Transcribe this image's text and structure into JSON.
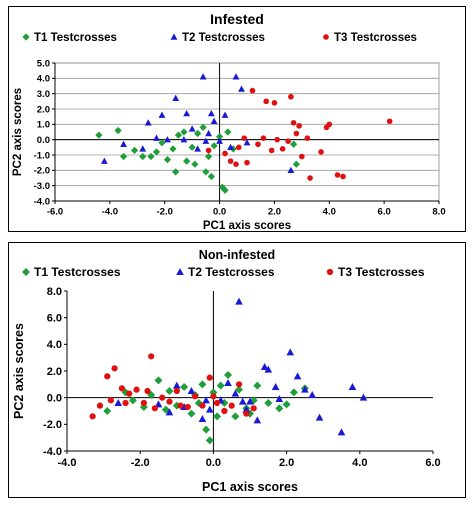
{
  "chart_data": [
    {
      "type": "scatter",
      "title": "Infested",
      "xlabel": "PC1 axis scores",
      "ylabel": "PC2 axis scores",
      "xlim": [
        -6.0,
        8.0
      ],
      "ylim": [
        -4.0,
        5.0
      ],
      "xticks": [
        "-6.0",
        "-4.0",
        "-2.0",
        "0.0",
        "2.0",
        "4.0",
        "6.0",
        "8.0"
      ],
      "yticks": [
        "-4.0",
        "-3.0",
        "-2.0",
        "-1.0",
        "0.0",
        "1.0",
        "2.0",
        "3.0",
        "4.0",
        "5.0"
      ],
      "grid": true,
      "legend": "top",
      "series": [
        {
          "name": "T1 Testcrosses",
          "marker": "diamond",
          "color": "#1f9e3a",
          "points": [
            [
              -4.4,
              0.3
            ],
            [
              -3.7,
              0.6
            ],
            [
              -3.5,
              -1.1
            ],
            [
              -3.1,
              -0.7
            ],
            [
              -2.8,
              -1.1
            ],
            [
              -2.5,
              -1.1
            ],
            [
              -2.3,
              -0.8
            ],
            [
              -2.1,
              -0.2
            ],
            [
              -1.9,
              -1.3
            ],
            [
              -1.7,
              -0.6
            ],
            [
              -1.6,
              -2.1
            ],
            [
              -1.5,
              0.3
            ],
            [
              -1.3,
              0.5
            ],
            [
              -1.2,
              -1.4
            ],
            [
              -1.0,
              -0.5
            ],
            [
              -0.9,
              -1.6
            ],
            [
              -0.8,
              0.4
            ],
            [
              -0.6,
              0.8
            ],
            [
              -0.5,
              -2.1
            ],
            [
              -0.4,
              -1.1
            ],
            [
              -0.3,
              -2.4
            ],
            [
              -0.2,
              -0.4
            ],
            [
              0.0,
              0.2
            ],
            [
              0.1,
              -3.1
            ],
            [
              0.2,
              -3.3
            ],
            [
              0.3,
              0.5
            ],
            [
              0.5,
              -0.6
            ],
            [
              2.7,
              -0.3
            ],
            [
              2.8,
              -1.6
            ]
          ]
        },
        {
          "name": "T2 Testcrosses",
          "marker": "triangle",
          "color": "#1a1ad6",
          "points": [
            [
              -4.2,
              -1.4
            ],
            [
              -3.5,
              -0.3
            ],
            [
              -2.8,
              -0.6
            ],
            [
              -2.6,
              1.1
            ],
            [
              -2.3,
              0.1
            ],
            [
              -2.1,
              1.6
            ],
            [
              -1.9,
              0.0
            ],
            [
              -1.6,
              2.7
            ],
            [
              -1.3,
              0.0
            ],
            [
              -1.2,
              1.7
            ],
            [
              -1.0,
              0.7
            ],
            [
              -0.8,
              -0.6
            ],
            [
              -0.6,
              4.1
            ],
            [
              -0.5,
              -0.1
            ],
            [
              -0.4,
              0.4
            ],
            [
              -0.3,
              1.7
            ],
            [
              -0.2,
              1.2
            ],
            [
              0.0,
              -0.1
            ],
            [
              0.2,
              1.6
            ],
            [
              0.4,
              -0.5
            ],
            [
              0.6,
              4.1
            ],
            [
              0.8,
              3.3
            ],
            [
              1.0,
              -0.2
            ],
            [
              2.6,
              -2.0
            ]
          ]
        },
        {
          "name": "T3 Testcrosses",
          "marker": "circle",
          "color": "#e01010",
          "points": [
            [
              -0.4,
              -0.7
            ],
            [
              0.2,
              -0.9
            ],
            [
              0.4,
              -1.4
            ],
            [
              0.6,
              -1.6
            ],
            [
              0.7,
              -0.5
            ],
            [
              0.9,
              0.1
            ],
            [
              1.0,
              -1.5
            ],
            [
              1.2,
              3.2
            ],
            [
              1.4,
              -0.3
            ],
            [
              1.6,
              0.1
            ],
            [
              1.7,
              2.5
            ],
            [
              1.9,
              -0.7
            ],
            [
              2.0,
              2.4
            ],
            [
              2.1,
              0.0
            ],
            [
              2.3,
              -0.6
            ],
            [
              2.5,
              -0.1
            ],
            [
              2.6,
              2.8
            ],
            [
              2.7,
              1.1
            ],
            [
              2.8,
              0.4
            ],
            [
              2.9,
              0.9
            ],
            [
              3.0,
              -1.1
            ],
            [
              3.2,
              0.1
            ],
            [
              3.3,
              -2.5
            ],
            [
              3.7,
              -0.8
            ],
            [
              3.9,
              0.8
            ],
            [
              4.0,
              1.0
            ],
            [
              4.3,
              -2.3
            ],
            [
              4.5,
              -2.4
            ],
            [
              6.2,
              1.2
            ]
          ]
        }
      ]
    },
    {
      "type": "scatter",
      "title": "Non-infested",
      "xlabel": "PC1 axis scores",
      "ylabel": "PC2 axis scores",
      "xlim": [
        -4.0,
        6.0
      ],
      "ylim": [
        -4.0,
        8.0
      ],
      "xticks": [
        "-4.0",
        "-2.0",
        "0.0",
        "2.0",
        "4.0",
        "6.0"
      ],
      "yticks": [
        "-4.0",
        "-2.0",
        "0.0",
        "2.0",
        "4.0",
        "6.0",
        "8.0"
      ],
      "grid": false,
      "legend": "top",
      "series": [
        {
          "name": "T1 Testcrosses",
          "marker": "diamond",
          "color": "#1f9e3a",
          "points": [
            [
              -2.9,
              -1.0
            ],
            [
              -2.4,
              0.4
            ],
            [
              -2.2,
              -0.2
            ],
            [
              -1.9,
              -0.7
            ],
            [
              -1.7,
              0.2
            ],
            [
              -1.5,
              1.3
            ],
            [
              -1.3,
              -0.9
            ],
            [
              -1.2,
              0.5
            ],
            [
              -1.0,
              -0.6
            ],
            [
              -0.8,
              0.8
            ],
            [
              -0.6,
              -1.2
            ],
            [
              -0.5,
              0.2
            ],
            [
              -0.4,
              -0.4
            ],
            [
              -0.3,
              1.0
            ],
            [
              -0.2,
              -2.4
            ],
            [
              -0.1,
              -3.2
            ],
            [
              0.0,
              0.4
            ],
            [
              0.1,
              -1.4
            ],
            [
              0.2,
              0.9
            ],
            [
              0.3,
              -0.4
            ],
            [
              0.4,
              1.7
            ],
            [
              0.6,
              -1.4
            ],
            [
              0.7,
              0.6
            ],
            [
              0.9,
              -0.8
            ],
            [
              1.0,
              -1.2
            ],
            [
              1.1,
              -0.2
            ],
            [
              1.2,
              0.9
            ],
            [
              1.5,
              -0.4
            ],
            [
              1.8,
              -0.8
            ],
            [
              2.0,
              -0.5
            ],
            [
              2.2,
              0.4
            ],
            [
              2.5,
              0.7
            ]
          ]
        },
        {
          "name": "T2 Testcrosses",
          "marker": "triangle",
          "color": "#1a1ad6",
          "points": [
            [
              -2.6,
              -0.4
            ],
            [
              -1.5,
              -0.5
            ],
            [
              -1.2,
              -1.1
            ],
            [
              -1.0,
              0.9
            ],
            [
              -0.8,
              -0.7
            ],
            [
              -0.6,
              0.5
            ],
            [
              -0.3,
              -1.6
            ],
            [
              -0.2,
              -0.2
            ],
            [
              -0.1,
              -0.9
            ],
            [
              0.2,
              -0.2
            ],
            [
              0.4,
              1.1
            ],
            [
              0.6,
              0.3
            ],
            [
              0.7,
              7.2
            ],
            [
              0.8,
              -0.3
            ],
            [
              0.9,
              -0.9
            ],
            [
              1.0,
              -0.3
            ],
            [
              1.2,
              -1.7
            ],
            [
              1.4,
              2.3
            ],
            [
              1.5,
              2.1
            ],
            [
              1.7,
              0.8
            ],
            [
              1.8,
              -0.1
            ],
            [
              2.1,
              3.4
            ],
            [
              2.3,
              1.6
            ],
            [
              2.5,
              0.6
            ],
            [
              2.7,
              0.2
            ],
            [
              2.9,
              -1.5
            ],
            [
              3.5,
              -2.6
            ],
            [
              3.8,
              0.8
            ],
            [
              4.1,
              0.0
            ]
          ]
        },
        {
          "name": "T3 Testcrosses",
          "marker": "circle",
          "color": "#e01010",
          "points": [
            [
              -3.3,
              -1.4
            ],
            [
              -3.1,
              -0.6
            ],
            [
              -2.9,
              1.6
            ],
            [
              -2.8,
              -0.2
            ],
            [
              -2.7,
              2.2
            ],
            [
              -2.5,
              0.7
            ],
            [
              -2.4,
              -0.4
            ],
            [
              -2.3,
              0.3
            ],
            [
              -2.1,
              0.6
            ],
            [
              -1.9,
              -0.4
            ],
            [
              -1.8,
              0.5
            ],
            [
              -1.7,
              3.1
            ],
            [
              -1.6,
              -0.8
            ],
            [
              -1.4,
              0.0
            ],
            [
              -1.2,
              -0.3
            ],
            [
              -1.0,
              0.5
            ],
            [
              -0.9,
              -0.6
            ],
            [
              -0.7,
              -0.7
            ],
            [
              -0.5,
              0.1
            ],
            [
              -0.3,
              -0.6
            ],
            [
              -0.1,
              1.5
            ],
            [
              0.0,
              0.1
            ],
            [
              0.1,
              -0.4
            ],
            [
              0.3,
              -1.0
            ],
            [
              0.5,
              -0.6
            ],
            [
              0.7,
              1.0
            ],
            [
              0.9,
              -1.2
            ],
            [
              1.1,
              -0.8
            ]
          ]
        }
      ]
    }
  ]
}
